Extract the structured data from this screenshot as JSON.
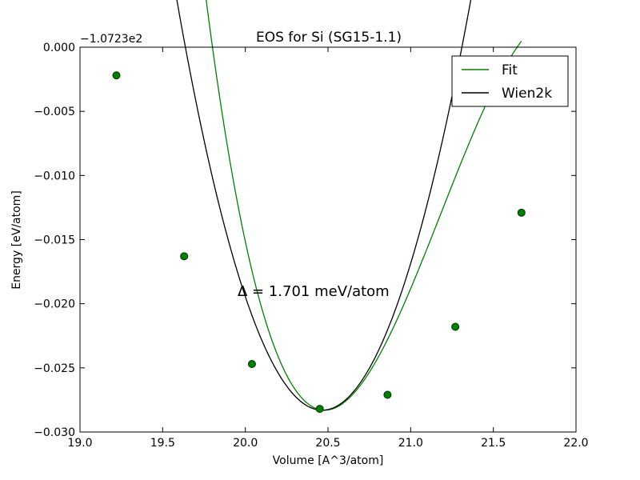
{
  "chart_data": {
    "type": "line",
    "title": "EOS for Si (SG15-1.1)",
    "xlabel": "Volume [A^3/atom]",
    "ylabel": "Energy [eV/atom]",
    "y_offset_label": "−1.0723e2",
    "xlim": [
      19.0,
      22.0
    ],
    "ylim": [
      -0.03,
      0.0
    ],
    "x_ticks": [
      19.0,
      19.5,
      20.0,
      20.5,
      21.0,
      21.5,
      22.0
    ],
    "x_tick_labels": [
      "19.0",
      "19.5",
      "20.0",
      "20.5",
      "21.0",
      "21.5",
      "22.0"
    ],
    "y_ticks": [
      0.0,
      -0.005,
      -0.01,
      -0.015,
      -0.02,
      -0.025,
      -0.03
    ],
    "y_tick_labels": [
      "0.000",
      "−0.005",
      "−0.010",
      "−0.015",
      "−0.020",
      "−0.025",
      "−0.030"
    ],
    "legend_position": "top-right",
    "grid": false,
    "annotation": "Δ = 1.701 meV/atom",
    "series": [
      {
        "name": "Fit",
        "color": "#008000",
        "curve": {
          "v0": 20.48,
          "e0": -0.0283,
          "a": 0.0465,
          "b": -0.022
        },
        "x_range": [
          19.22,
          21.67
        ]
      },
      {
        "name": "Wien2k",
        "color": "#000000",
        "curve": {
          "v0": 20.465,
          "e0": -0.0283,
          "a": 0.0405,
          "b": -0.001
        },
        "x_range": [
          19.22,
          21.67
        ]
      }
    ],
    "points": {
      "color": "#008000",
      "x": [
        19.22,
        19.63,
        20.04,
        20.45,
        20.86,
        21.27,
        21.67
      ],
      "y": [
        -0.0022,
        -0.0163,
        -0.0247,
        -0.0282,
        -0.0271,
        -0.0218,
        -0.0129
      ]
    }
  }
}
